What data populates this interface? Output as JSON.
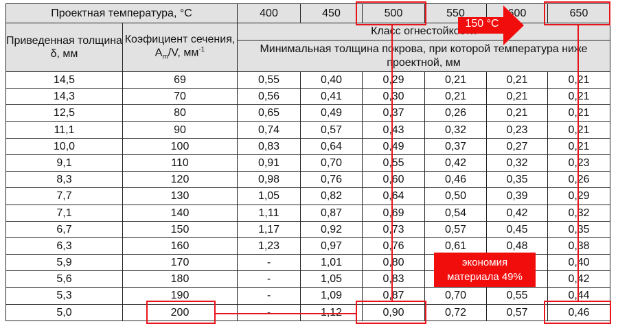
{
  "header": {
    "design_temperature_label": "Проектная температура, °C",
    "temperatures": [
      "400",
      "450",
      "500",
      "550",
      "600",
      "650"
    ],
    "reduced_thickness_label": "Приведенная толщина δ, мм",
    "section_factor_label_main": "Коэфициент сечения, A",
    "section_factor_sub": "m",
    "section_factor_tail": "/V, мм",
    "section_factor_sup": "-1",
    "fire_class_label": "Класс огнестойкости",
    "min_thickness_label": "Минимальная толщина покрова, при которой температура ниже проектной,  мм"
  },
  "rows": [
    {
      "delta": "14,5",
      "coef": "69",
      "vals": [
        "0,55",
        "0,40",
        "0,29",
        "0,21",
        "0,21",
        "0,21"
      ]
    },
    {
      "delta": "14,3",
      "coef": "70",
      "vals": [
        "0,56",
        "0,41",
        "0,30",
        "0,21",
        "0,21",
        "0,21"
      ]
    },
    {
      "delta": "12,5",
      "coef": "80",
      "vals": [
        "0,65",
        "0,49",
        "0,37",
        "0,26",
        "0,21",
        "0,21"
      ]
    },
    {
      "delta": "11,1",
      "coef": "90",
      "vals": [
        "0,74",
        "0,57",
        "0,43",
        "0,32",
        "0,23",
        "0,21"
      ]
    },
    {
      "delta": "10,0",
      "coef": "100",
      "vals": [
        "0,83",
        "0,64",
        "0,49",
        "0,37",
        "0,27",
        "0,21"
      ]
    },
    {
      "delta": "9,1",
      "coef": "110",
      "vals": [
        "0,91",
        "0,70",
        "0,55",
        "0,42",
        "0,32",
        "0,23"
      ]
    },
    {
      "delta": "8,3",
      "coef": "120",
      "vals": [
        "0,98",
        "0,76",
        "0,60",
        "0,46",
        "0,35",
        "0,26"
      ]
    },
    {
      "delta": "7,7",
      "coef": "130",
      "vals": [
        "1,05",
        "0,82",
        "0,64",
        "0,50",
        "0,39",
        "0,29"
      ]
    },
    {
      "delta": "7,1",
      "coef": "140",
      "vals": [
        "1,11",
        "0,87",
        "0,69",
        "0,54",
        "0,42",
        "0,32"
      ]
    },
    {
      "delta": "6,7",
      "coef": "150",
      "vals": [
        "1,17",
        "0,92",
        "0,73",
        "0,57",
        "0,45",
        "0,35"
      ]
    },
    {
      "delta": "6,3",
      "coef": "160",
      "vals": [
        "1,23",
        "0,97",
        "0,76",
        "0,61",
        "0,48",
        "0,38"
      ]
    },
    {
      "delta": "5,9",
      "coef": "170",
      "vals": [
        "-",
        "1,01",
        "0,80",
        "",
        "",
        "0,40"
      ]
    },
    {
      "delta": "5,6",
      "coef": "180",
      "vals": [
        "-",
        "1,05",
        "0,83",
        "",
        "",
        "0,42"
      ]
    },
    {
      "delta": "5,3",
      "coef": "190",
      "vals": [
        "-",
        "1,09",
        "0,87",
        "0,70",
        "0,55",
        "0,44"
      ]
    },
    {
      "delta": "5,0",
      "coef": "200",
      "vals": [
        "-",
        "1,12",
        "0,90",
        "0,72",
        "0,57",
        "0,46"
      ]
    }
  ],
  "annotations": {
    "arrow_label": "150 °C",
    "savings_line1": "экономия",
    "savings_line2": "материала 49%",
    "accent_color": "#e8141b"
  }
}
